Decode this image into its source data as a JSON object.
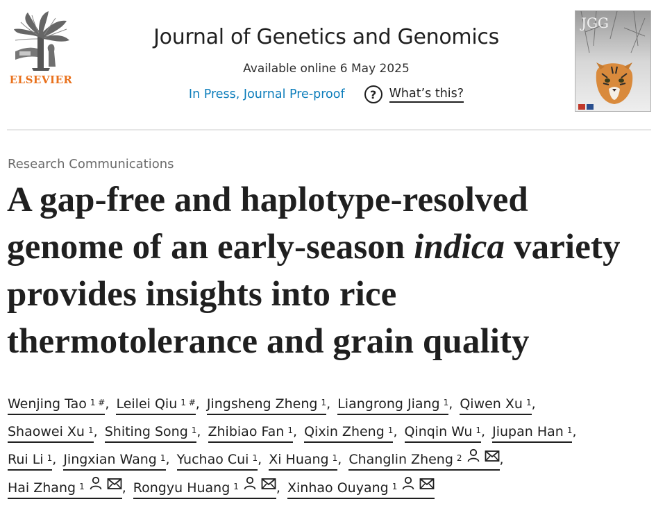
{
  "publisher": {
    "name": "ELSEVIER",
    "logo": "elsevier-tree-logo"
  },
  "journal": {
    "title": "Journal of Genetics and Genomics",
    "availability": "Available online 6 May 2025",
    "status_link": "In Press, Journal Pre-proof",
    "help_label": "What’s this?",
    "help_icon": "question-circle-icon",
    "cover_label": "JGG"
  },
  "article": {
    "type": "Research Communications",
    "title_before_italic": "A gap-free and haplotype-resolved genome of an early-season ",
    "title_italic": "indica",
    "title_after_italic": " variety provides insights into rice thermotolerance and grain quality"
  },
  "authors": [
    {
      "name": "Wenjing Tao",
      "sup": "1 #",
      "corresponding": false
    },
    {
      "name": "Leilei Qiu",
      "sup": "1 #",
      "corresponding": false
    },
    {
      "name": "Jingsheng Zheng",
      "sup": "1",
      "corresponding": false
    },
    {
      "name": "Liangrong Jiang",
      "sup": "1",
      "corresponding": false
    },
    {
      "name": "Qiwen Xu",
      "sup": "1",
      "corresponding": false
    },
    {
      "name": "Shaowei Xu",
      "sup": "1",
      "corresponding": false
    },
    {
      "name": "Shiting Song",
      "sup": "1",
      "corresponding": false
    },
    {
      "name": "Zhibiao Fan",
      "sup": "1",
      "corresponding": false
    },
    {
      "name": "Qixin Zheng",
      "sup": "1",
      "corresponding": false
    },
    {
      "name": "Qinqin Wu",
      "sup": "1",
      "corresponding": false
    },
    {
      "name": "Jiupan Han",
      "sup": "1",
      "corresponding": false
    },
    {
      "name": "Rui Li",
      "sup": "1",
      "corresponding": false
    },
    {
      "name": "Jingxian Wang",
      "sup": "1",
      "corresponding": false
    },
    {
      "name": "Yuchao Cui",
      "sup": "1",
      "corresponding": false
    },
    {
      "name": "Xi Huang",
      "sup": "1",
      "corresponding": false
    },
    {
      "name": "Changlin Zheng",
      "sup": "2",
      "corresponding": true
    },
    {
      "name": "Hai Zhang",
      "sup": "1",
      "corresponding": true
    },
    {
      "name": "Rongyu Huang",
      "sup": "1",
      "corresponding": true
    },
    {
      "name": "Xinhao Ouyang",
      "sup": "1",
      "corresponding": true
    }
  ],
  "colors": {
    "link": "#0c7dbb",
    "elsevier_orange": "#e9711c",
    "text": "#1f1f1f",
    "muted": "#6b6b6b"
  }
}
